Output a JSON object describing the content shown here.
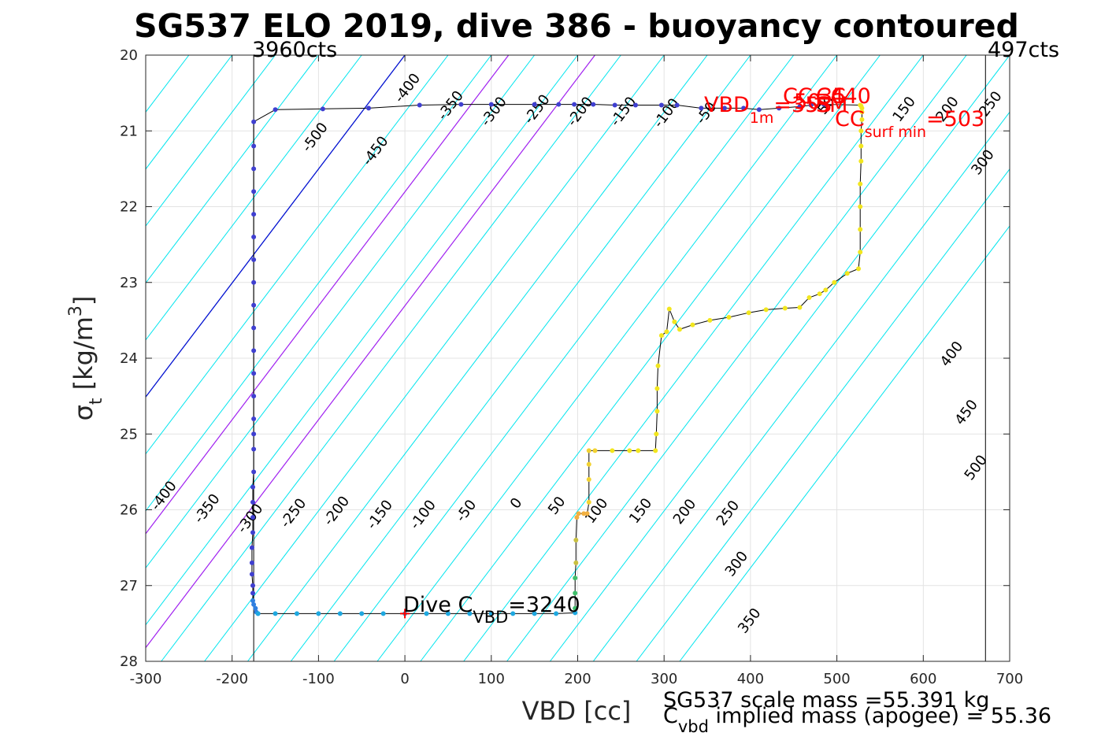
{
  "chart_data": {
    "type": "scatter",
    "title": "SG537 ELO 2019, dive 386 - buoyancy contoured",
    "xlabel": "VBD [cc]",
    "ylabel": {
      "main": "σ",
      "sub": "t",
      "units_pre": " [kg/m",
      "units_sup": "3",
      "units_post": "]"
    },
    "xlim": [
      -300,
      700
    ],
    "ylim": [
      20,
      28
    ],
    "y_reversed": true,
    "grid": true,
    "xticks": [
      -300,
      -200,
      -100,
      0,
      100,
      200,
      300,
      400,
      500,
      600,
      700
    ],
    "yticks": [
      20,
      21,
      22,
      23,
      24,
      25,
      26,
      27,
      28
    ],
    "count_lines": [
      {
        "x": -175,
        "label": "3960cts"
      },
      {
        "x": 672,
        "label": "497cts"
      }
    ],
    "contour_colors": {
      "cyan": "#00e5ee",
      "zero": "#0010d0",
      "magenta": "#a020f0"
    },
    "buoyancy_contours": [
      -600,
      -550,
      -500,
      -450,
      -400,
      -350,
      -300,
      -250,
      -200,
      -150,
      -100,
      -50,
      0,
      50,
      100,
      150,
      200,
      250,
      300,
      350,
      400,
      450,
      500,
      550,
      600,
      650,
      700,
      750,
      800,
      850
    ],
    "magenta_contours": [
      120,
      220
    ],
    "contour_labels": [
      {
        "text": "-500",
        "x": -100,
        "y": 21.12
      },
      {
        "text": "-450",
        "x": -30,
        "y": 21.3
      },
      {
        "text": "-400",
        "x": 7,
        "y": 20.47
      },
      {
        "text": "-350",
        "x": 57,
        "y": 20.7
      },
      {
        "text": "-300",
        "x": 107,
        "y": 20.78
      },
      {
        "text": "-250",
        "x": 157,
        "y": 20.75
      },
      {
        "text": "-200",
        "x": 207,
        "y": 20.78
      },
      {
        "text": "-150",
        "x": 257,
        "y": 20.78
      },
      {
        "text": "-100",
        "x": 307,
        "y": 20.8
      },
      {
        "text": "-50",
        "x": 353,
        "y": 20.8
      },
      {
        "text": "-400",
        "x": -275,
        "y": 25.85
      },
      {
        "text": "-350",
        "x": -225,
        "y": 26.02
      },
      {
        "text": "-300",
        "x": -175,
        "y": 26.15
      },
      {
        "text": "-250",
        "x": -125,
        "y": 26.08
      },
      {
        "text": "-200",
        "x": -75,
        "y": 26.05
      },
      {
        "text": "-150",
        "x": -25,
        "y": 26.1
      },
      {
        "text": "-100",
        "x": 25,
        "y": 26.1
      },
      {
        "text": "-50",
        "x": 75,
        "y": 26.05
      },
      {
        "text": "0",
        "x": 133,
        "y": 25.95
      },
      {
        "text": "50",
        "x": 180,
        "y": 25.98
      },
      {
        "text": "100",
        "x": 226,
        "y": 26.05
      },
      {
        "text": "150",
        "x": 277,
        "y": 26.05
      },
      {
        "text": "200",
        "x": 328,
        "y": 26.06
      },
      {
        "text": "250",
        "x": 378,
        "y": 26.08
      },
      {
        "text": "300",
        "x": 388,
        "y": 26.75
      },
      {
        "text": "350",
        "x": 403,
        "y": 27.5
      },
      {
        "text": "50",
        "x": 492,
        "y": 20.7
      },
      {
        "text": "150",
        "x": 582,
        "y": 20.75
      },
      {
        "text": "200",
        "x": 632,
        "y": 20.75
      },
      {
        "text": "250",
        "x": 682,
        "y": 20.68
      },
      {
        "text": "300",
        "x": 673,
        "y": 21.45
      },
      {
        "text": "400",
        "x": 637,
        "y": 23.98
      },
      {
        "text": "450",
        "x": 654,
        "y": 24.75
      },
      {
        "text": "500",
        "x": 665,
        "y": 25.48
      }
    ],
    "series_descent": {
      "x": [
        -175,
        -175,
        -175,
        -175,
        -175,
        -175,
        -175,
        -175,
        -175,
        -175,
        -175,
        -175,
        -175,
        -175,
        -175,
        -175,
        -175,
        -176,
        -176,
        -176,
        -176,
        -177,
        -177,
        -177,
        -176,
        -176,
        -176,
        -175,
        -173,
        -172,
        -170
      ],
      "y": [
        20.88,
        21.2,
        21.5,
        21.8,
        22.1,
        22.4,
        22.7,
        23.0,
        23.3,
        23.6,
        23.9,
        24.2,
        24.5,
        24.8,
        25.0,
        25.2,
        25.5,
        25.7,
        25.9,
        26.1,
        26.3,
        26.5,
        26.7,
        26.85,
        27.0,
        27.1,
        27.2,
        27.25,
        27.3,
        27.35,
        27.37
      ]
    },
    "series_surface": {
      "x": [
        -150,
        -95,
        -42,
        17,
        65,
        100,
        150,
        178,
        196,
        218,
        243,
        267,
        297,
        315,
        343,
        370,
        392,
        410,
        433,
        457,
        470,
        485
      ],
      "y": [
        20.72,
        20.71,
        20.7,
        20.66,
        20.65,
        20.65,
        20.65,
        20.65,
        20.65,
        20.65,
        20.66,
        20.66,
        20.66,
        20.66,
        20.7,
        20.7,
        20.7,
        20.72,
        20.7,
        20.68,
        20.66,
        20.65
      ]
    },
    "series_bottom": {
      "x": [
        -170,
        -150,
        -125,
        -100,
        -75,
        -50,
        -25,
        0,
        25,
        50,
        75,
        100,
        125,
        150,
        175,
        197
      ],
      "y": [
        27.37,
        27.37,
        27.37,
        27.37,
        27.37,
        27.37,
        27.37,
        27.37,
        27.37,
        27.37,
        27.37,
        27.37,
        27.37,
        27.37,
        27.37,
        27.36
      ]
    },
    "series_ascent": {
      "x": [
        197,
        197,
        197,
        198,
        198,
        199,
        201,
        207,
        211,
        213,
        213,
        213,
        213,
        220,
        240,
        260,
        270,
        290,
        291,
        292,
        292,
        293,
        297,
        303,
        306,
        312,
        318,
        333,
        353,
        375,
        398,
        418,
        440,
        457,
        468,
        480,
        487,
        497,
        512,
        525,
        527,
        527,
        527,
        527,
        528,
        528,
        528,
        529,
        529,
        529,
        528,
        527
      ],
      "y": [
        27.3,
        27.1,
        26.9,
        26.7,
        26.4,
        26.1,
        26.05,
        26.05,
        26.05,
        25.9,
        25.6,
        25.4,
        25.22,
        25.22,
        25.22,
        25.22,
        25.22,
        25.22,
        25.0,
        24.7,
        24.4,
        24.1,
        23.7,
        23.65,
        23.35,
        23.52,
        23.62,
        23.56,
        23.5,
        23.46,
        23.4,
        23.36,
        23.34,
        23.33,
        23.2,
        23.15,
        23.1,
        23.0,
        22.88,
        22.82,
        22.6,
        22.3,
        22.0,
        21.7,
        21.4,
        21.2,
        21.0,
        20.85,
        20.75,
        20.7,
        20.67,
        20.66
      ]
    },
    "dive_start": {
      "x": 0,
      "y": 27.37
    },
    "dive_cvbd_label": {
      "pre": "Dive C",
      "sub": "VBD",
      "post": "=3240"
    },
    "red_labels": {
      "vbd_1m": {
        "pre": "VBD",
        "sub": "1m",
        "post": "=353"
      },
      "cc": "CC=440",
      "cc_surf_min": {
        "pre": "CC",
        "sub": "surf min",
        "post": "=503"
      },
      "sm": "SM",
      "cc_small": "CC",
      "v35": "35",
      "v50": "50"
    },
    "footer": {
      "line1": "SG537 scale mass =55.391 kg",
      "line2_pre": "C",
      "line2_sub": "vbd",
      "line2_post": " implied mass (apogee) = 55.36"
    }
  }
}
